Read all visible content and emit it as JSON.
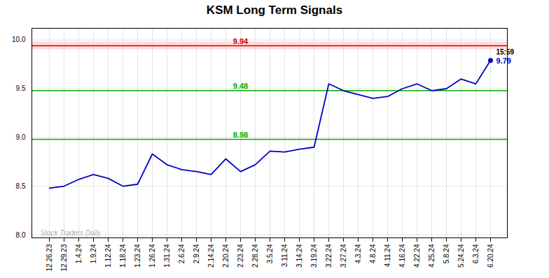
{
  "chart_data": {
    "type": "line",
    "title": "KSM Long Term Signals",
    "categories": [
      "12.26.23",
      "12.29.23",
      "1.4.24",
      "1.9.24",
      "1.12.24",
      "1.18.24",
      "1.23.24",
      "1.26.24",
      "1.31.24",
      "2.6.24",
      "2.9.24",
      "2.14.24",
      "2.20.24",
      "2.23.24",
      "2.28.24",
      "3.5.24",
      "3.11.24",
      "3.14.24",
      "3.19.24",
      "3.22.24",
      "3.27.24",
      "4.3.24",
      "4.8.24",
      "4.11.24",
      "4.16.24",
      "4.22.24",
      "4.25.24",
      "5.8.24",
      "5.24.24",
      "6.3.24",
      "6.20.24"
    ],
    "values": [
      8.48,
      8.5,
      8.57,
      8.62,
      8.58,
      8.5,
      8.52,
      8.83,
      8.72,
      8.67,
      8.65,
      8.62,
      8.78,
      8.65,
      8.72,
      8.86,
      8.85,
      8.88,
      8.9,
      9.55,
      9.48,
      9.44,
      9.4,
      9.42,
      9.5,
      9.55,
      9.48,
      9.5,
      9.6,
      9.55,
      9.79
    ],
    "color": "#0000cc",
    "ylim": [
      7.97,
      10.12
    ],
    "yticks": [
      {
        "value": 8.0,
        "label": "8.0"
      },
      8.5,
      {
        "value": 9.0,
        "label": "9.0"
      },
      9.5,
      {
        "value": 10.0,
        "label": "10.0"
      }
    ],
    "grid": true,
    "annotations": [
      {
        "type": "band",
        "y": [
          9.9,
          9.98
        ],
        "color": "#ffcccc"
      },
      {
        "type": "hline",
        "y": 9.94,
        "label": "9.94",
        "color": "#cc0000"
      },
      {
        "type": "hline",
        "y": 9.48,
        "label": "9.48",
        "color": "#00aa00"
      },
      {
        "type": "hline",
        "y": 8.98,
        "label": "8.98",
        "color": "#00aa00"
      },
      {
        "type": "last_point",
        "text": "15:59",
        "value": 9.79,
        "value_label": "9.79",
        "color": "#0000cc"
      },
      {
        "type": "watermark",
        "text": "Stock Traders Daily",
        "color": "#b0b0b0"
      }
    ]
  }
}
